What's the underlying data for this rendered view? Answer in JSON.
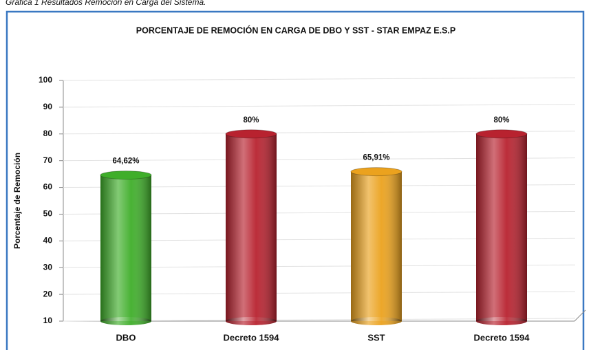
{
  "chart_data": {
    "type": "bar",
    "caption": "Gráfica 1 Resultados Remoción en Carga del Sistema.",
    "title": "PORCENTAJE DE REMOCIÓN EN CARGA DE  DBO Y SST  -  STAR EMPAZ E.S.P",
    "y_label": "Porcentaje de Remoción",
    "categories": [
      "DBO",
      "Decreto 1594",
      "SST",
      "Decreto 1594"
    ],
    "values": [
      64.62,
      80,
      65.91,
      80
    ],
    "value_labels": [
      "64,62%",
      "80%",
      "65,91%",
      "80%"
    ],
    "colors": [
      "#3fae2a",
      "#b8222f",
      "#eba21e",
      "#b8222f"
    ],
    "ylim": [
      10,
      100
    ],
    "yticks": [
      10,
      20,
      30,
      40,
      50,
      60,
      70,
      80,
      90,
      100
    ],
    "grid": true
  }
}
